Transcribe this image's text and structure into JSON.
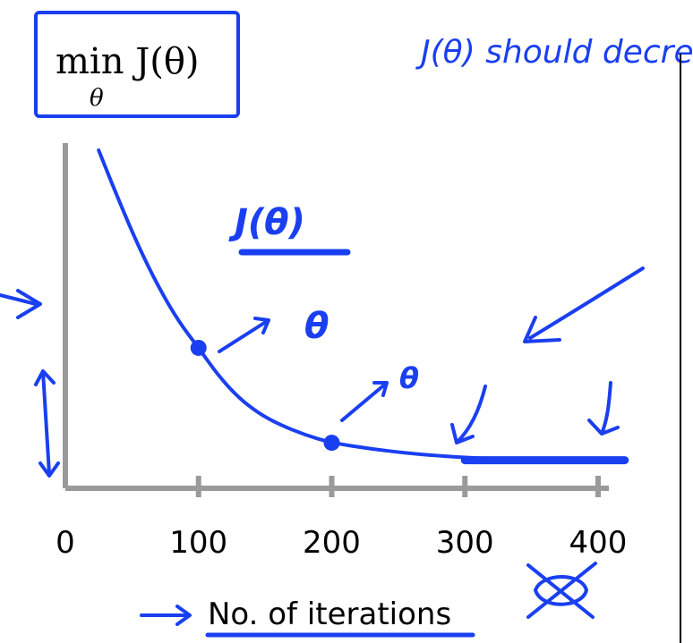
{
  "formula": {
    "main": "min J(θ)",
    "subscript": "θ"
  },
  "notes": {
    "handwritten": "J(θ) should decrease after every iteration",
    "curve_label": "J(θ)",
    "theta_note_1": "θ",
    "theta_note_2": "θ"
  },
  "chart_data": {
    "type": "line",
    "xlabel": "No. of iterations",
    "ylabel": "",
    "x_ticks": [
      0,
      100,
      200,
      300,
      400
    ],
    "xlim": [
      0,
      420
    ],
    "y_axis_labeled": false,
    "series": [
      {
        "points": [
          [
            25,
            10.0
          ],
          [
            40,
            8.4
          ],
          [
            55,
            6.9
          ],
          [
            70,
            5.6
          ],
          [
            85,
            4.5
          ],
          [
            100,
            3.65
          ],
          [
            115,
            2.75
          ],
          [
            130,
            2.05
          ],
          [
            145,
            1.55
          ],
          [
            160,
            1.2
          ],
          [
            180,
            0.85
          ],
          [
            200,
            0.6
          ],
          [
            230,
            0.4
          ],
          [
            260,
            0.25
          ],
          [
            300,
            0.12
          ],
          [
            350,
            0.05
          ],
          [
            420,
            0.03
          ]
        ],
        "color": "#1a3ff0"
      }
    ],
    "highlighted_points": [
      [
        100,
        3.65
      ],
      [
        200,
        0.6
      ]
    ],
    "grid": false
  },
  "colors": {
    "axis": "#9a9a9a",
    "ink": "#1a3ff0",
    "text": "#000000"
  }
}
